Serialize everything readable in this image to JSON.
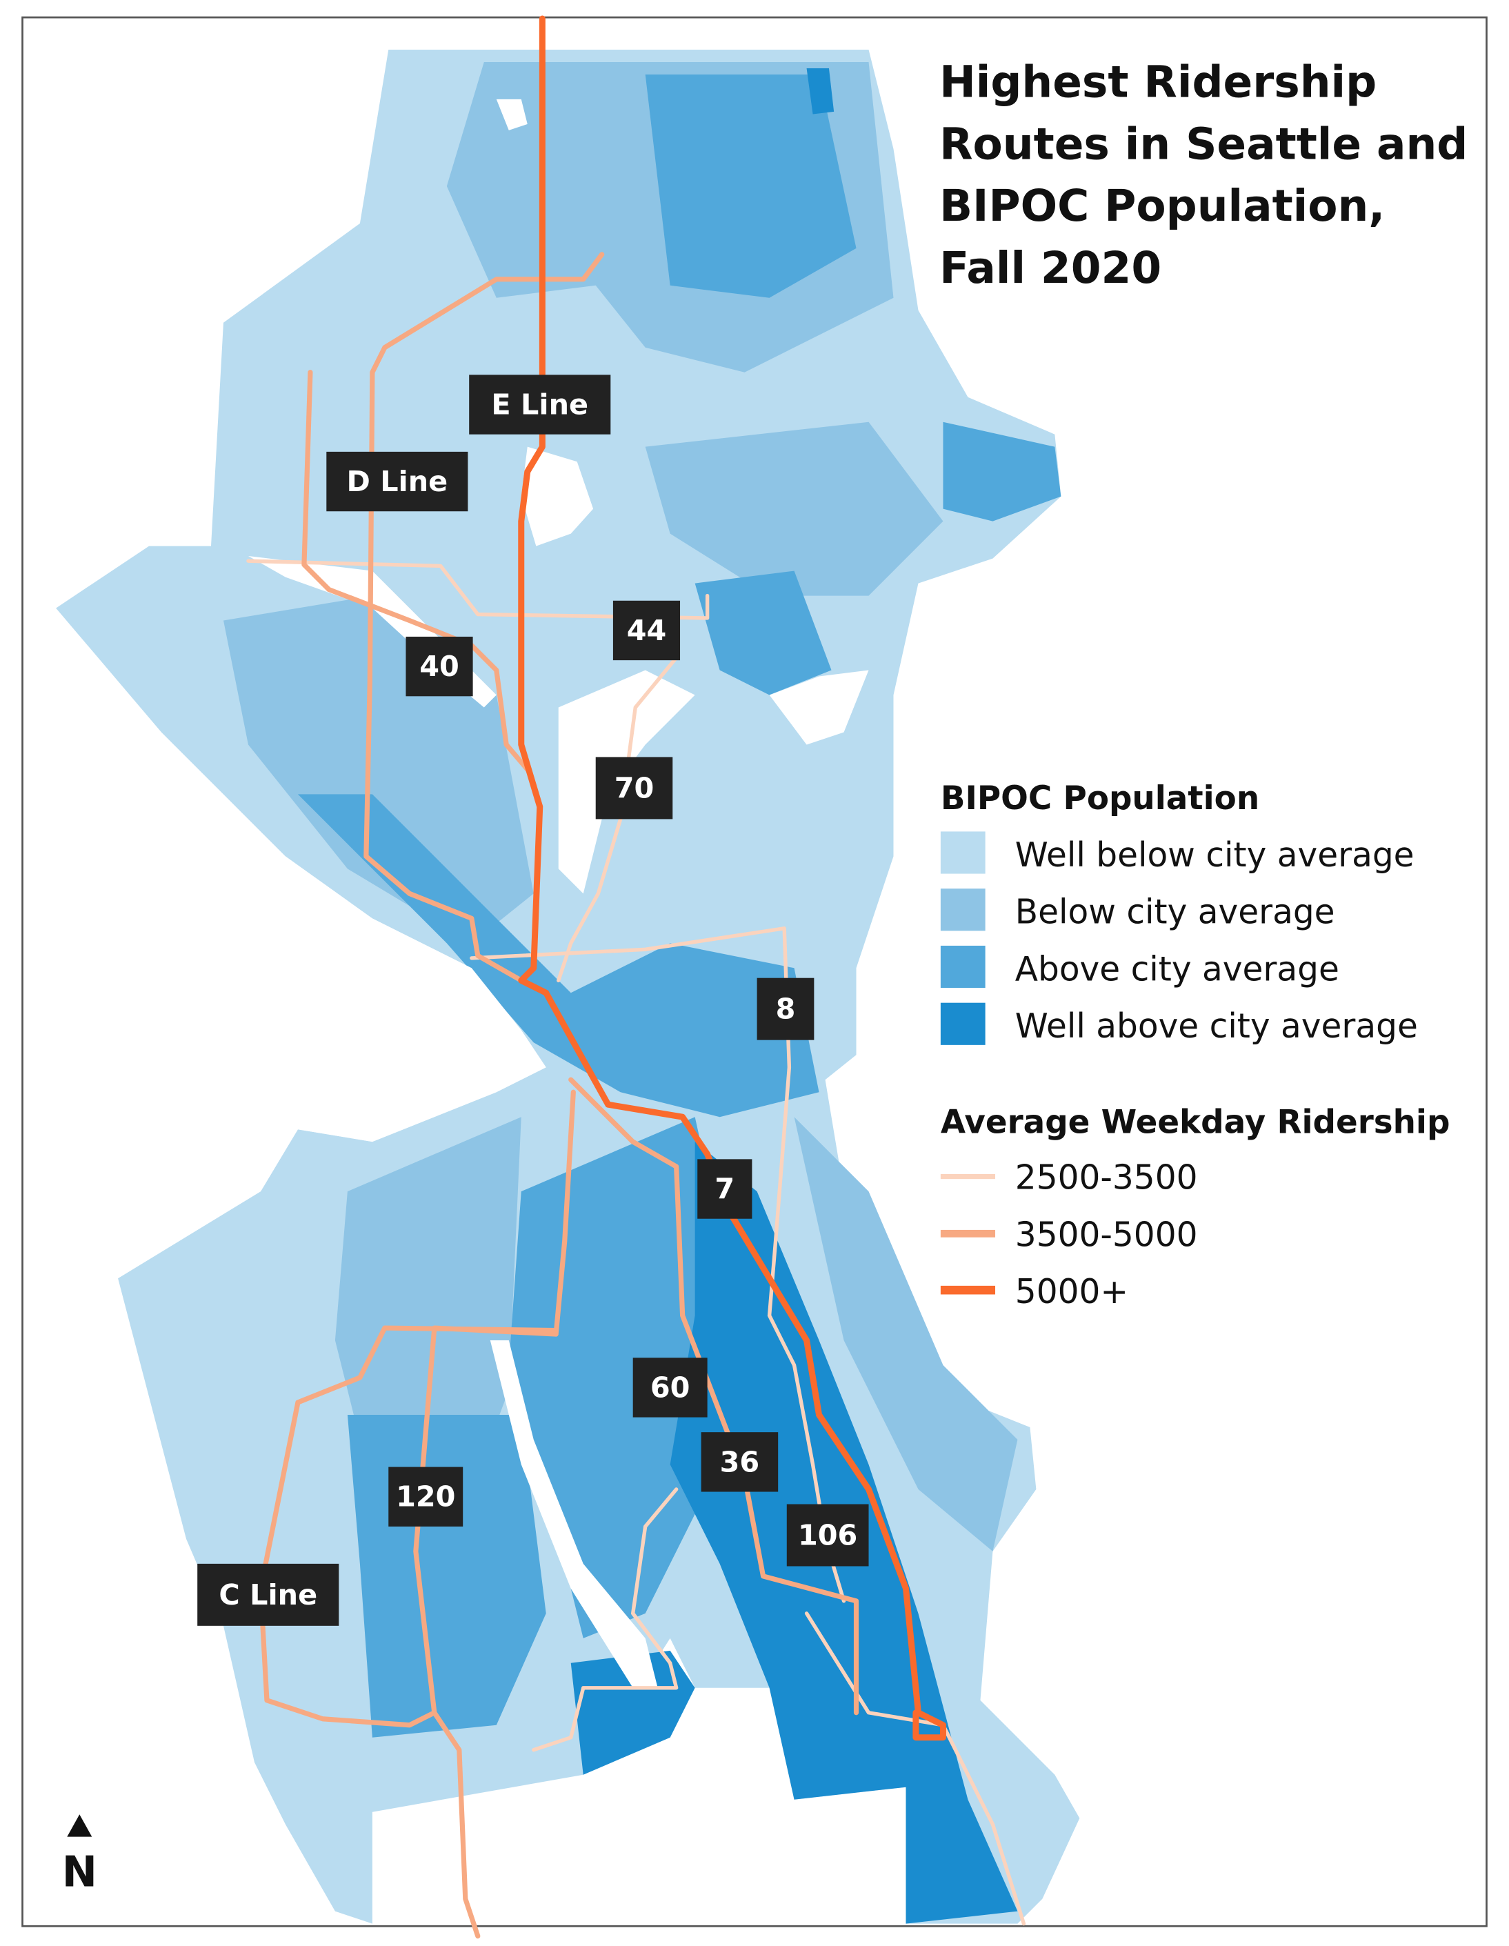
{
  "title_lines": [
    "Highest Ridership",
    "Routes in Seattle and",
    "BIPOC Population,",
    "Fall 2020"
  ],
  "legend": {
    "population_title": "BIPOC Population",
    "population_classes": [
      {
        "label": "Well below city average",
        "color": "#b9dcf0"
      },
      {
        "label": "Below city average",
        "color": "#8ec4e5"
      },
      {
        "label": "Above city average",
        "color": "#51a8db"
      },
      {
        "label": "Well above city average",
        "color": "#1a8ccf"
      }
    ],
    "ridership_title": "Average Weekday Ridership",
    "ridership_classes": [
      {
        "label": "2500-3500",
        "color": "#fbd3bd"
      },
      {
        "label": "3500-5000",
        "color": "#f7a982"
      },
      {
        "label": "5000+",
        "color": "#fa6a2c"
      }
    ]
  },
  "route_labels": [
    "E Line",
    "D Line",
    "44",
    "40",
    "70",
    "8",
    "7",
    "60",
    "36",
    "106",
    "120",
    "C Line"
  ],
  "north_arrow": "N"
}
